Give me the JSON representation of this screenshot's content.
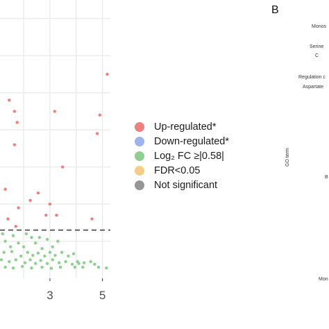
{
  "chart_data": {
    "type": "scatter",
    "title": "",
    "xlabel": "",
    "ylabel": "",
    "x_ticks": [
      3,
      5
    ],
    "xlim": [
      1.1,
      5.3
    ],
    "ylim": [
      0,
      7.5
    ],
    "grid": true,
    "threshold_y": 1.3,
    "legend_position": "right",
    "legend": [
      {
        "label": "Up-regulated*",
        "color": "#f08080"
      },
      {
        "label": "Down-regulated*",
        "color": "#9db4f0"
      },
      {
        "label": "Log₂ FC ≥|0.58|",
        "color": "#8fcf8f"
      },
      {
        "label": "FDR<0.05",
        "color": "#f5cd86"
      },
      {
        "label": "Not significant",
        "color": "#969696"
      }
    ],
    "series": [
      {
        "name": "Up-regulated*",
        "color": "#f08080",
        "points": [
          [
            5.18,
            5.5
          ],
          [
            1.45,
            4.8
          ],
          [
            1.65,
            4.5
          ],
          [
            3.18,
            4.5
          ],
          [
            4.9,
            4.4
          ],
          [
            1.75,
            4.2
          ],
          [
            4.8,
            3.9
          ],
          [
            1.65,
            3.6
          ],
          [
            3.48,
            3.0
          ],
          [
            1.3,
            2.4
          ],
          [
            2.55,
            2.3
          ],
          [
            2.25,
            2.1
          ],
          [
            3.0,
            2.0
          ],
          [
            1.8,
            1.9
          ],
          [
            2.85,
            1.7
          ],
          [
            3.25,
            1.7
          ],
          [
            1.4,
            1.6
          ],
          [
            4.6,
            1.6
          ],
          [
            1.7,
            1.4
          ]
        ]
      },
      {
        "name": "Log₂ FC ≥|0.58|",
        "color": "#8fcf8f",
        "points": [
          [
            1.2,
            1.2
          ],
          [
            1.6,
            1.15
          ],
          [
            2.1,
            1.2
          ],
          [
            2.3,
            1.1
          ],
          [
            2.6,
            1.1
          ],
          [
            2.9,
            1.05
          ],
          [
            1.3,
            1.0
          ],
          [
            1.8,
            0.95
          ],
          [
            2.45,
            0.95
          ],
          [
            3.3,
            1.0
          ],
          [
            1.5,
            0.85
          ],
          [
            2.0,
            0.85
          ],
          [
            2.7,
            0.8
          ],
          [
            3.1,
            0.85
          ],
          [
            1.25,
            0.7
          ],
          [
            1.55,
            0.72
          ],
          [
            1.9,
            0.6
          ],
          [
            2.15,
            0.7
          ],
          [
            2.35,
            0.62
          ],
          [
            2.55,
            0.68
          ],
          [
            2.8,
            0.6
          ],
          [
            3.0,
            0.7
          ],
          [
            3.2,
            0.62
          ],
          [
            3.45,
            0.7
          ],
          [
            3.7,
            0.6
          ],
          [
            3.9,
            0.66
          ],
          [
            1.15,
            0.5
          ],
          [
            1.45,
            0.45
          ],
          [
            1.7,
            0.5
          ],
          [
            2.05,
            0.42
          ],
          [
            2.25,
            0.5
          ],
          [
            2.45,
            0.4
          ],
          [
            2.65,
            0.48
          ],
          [
            2.9,
            0.4
          ],
          [
            3.1,
            0.5
          ],
          [
            3.35,
            0.42
          ],
          [
            3.6,
            0.45
          ],
          [
            3.85,
            0.38
          ],
          [
            4.05,
            0.45
          ],
          [
            4.3,
            0.42
          ],
          [
            4.55,
            0.45
          ],
          [
            1.3,
            0.3
          ],
          [
            1.6,
            0.28
          ],
          [
            1.95,
            0.32
          ],
          [
            2.3,
            0.28
          ],
          [
            2.7,
            0.3
          ],
          [
            3.05,
            0.27
          ],
          [
            3.4,
            0.3
          ],
          [
            3.95,
            0.3
          ],
          [
            4.25,
            0.3
          ],
          [
            4.85,
            0.3
          ],
          [
            5.15,
            0.28
          ],
          [
            4.1,
            0.4
          ],
          [
            4.7,
            0.38
          ]
        ]
      }
    ]
  },
  "legend_items": [
    {
      "label": "Up-regulated*",
      "color": "#f08080"
    },
    {
      "label": "Down-regulated*",
      "color": "#9db4f0"
    },
    {
      "label": "Log₂ FC ≥|0.58|",
      "color": "#8fcf8f"
    },
    {
      "label": "FDR<0.05",
      "color": "#f5cd86"
    },
    {
      "label": "Not significant",
      "color": "#969696"
    }
  ],
  "panel_b": {
    "letter": "B",
    "axis_label": "GO term",
    "fragments": [
      "Monos",
      "Serine",
      "C",
      "Regulation c",
      "Aspartate",
      "B",
      "Mon"
    ]
  }
}
